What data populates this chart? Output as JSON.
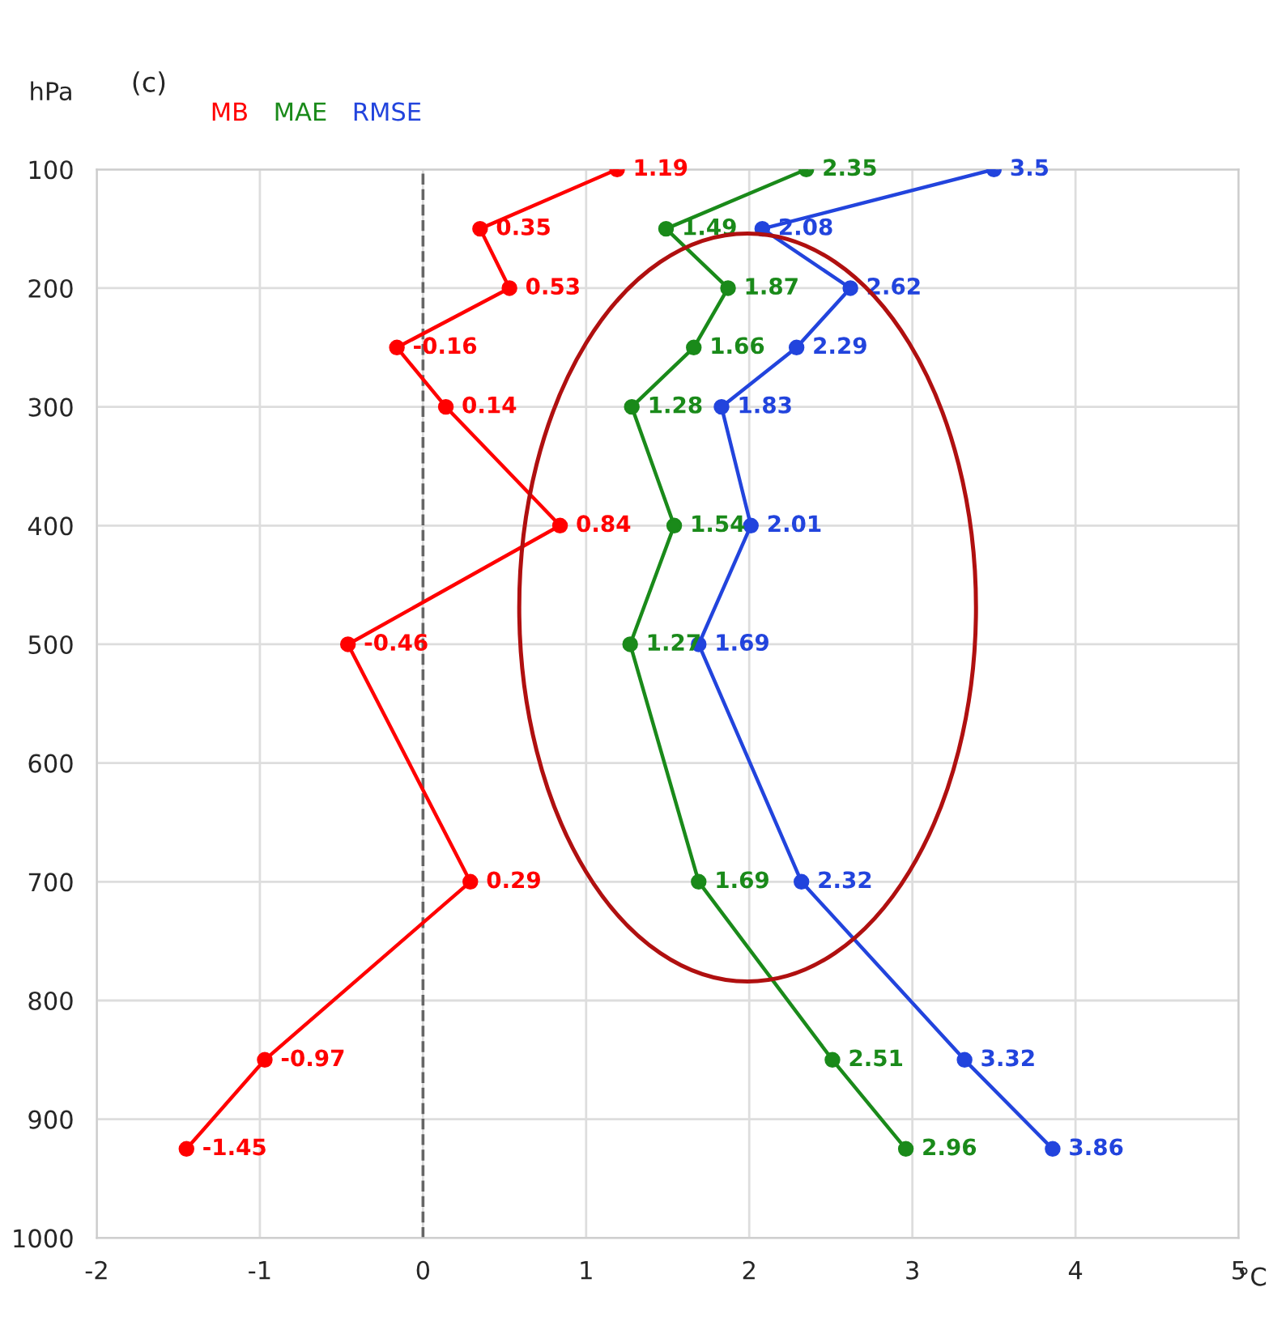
{
  "chart_data": {
    "type": "line",
    "title": "(c)",
    "ylabel": "hPa",
    "xlabel": "°C",
    "orientation": "horizontal",
    "x": [
      100,
      150,
      200,
      250,
      300,
      400,
      500,
      700,
      850,
      925
    ],
    "series": [
      {
        "name": "MB",
        "color": "#ff0000",
        "values": [
          1.19,
          0.35,
          0.53,
          -0.16,
          0.14,
          0.84,
          -0.46,
          0.29,
          -0.97,
          -1.45
        ]
      },
      {
        "name": "MAE",
        "color": "#1a8a1a",
        "values": [
          2.35,
          1.49,
          1.87,
          1.66,
          1.28,
          1.54,
          1.27,
          1.69,
          2.51,
          2.96
        ]
      },
      {
        "name": "RMSE",
        "color": "#2244dd",
        "values": [
          3.5,
          2.08,
          2.62,
          2.29,
          1.83,
          2.01,
          1.69,
          2.32,
          3.32,
          3.86
        ]
      }
    ],
    "xlim": [
      -2,
      5
    ],
    "xticks": [
      -2,
      -1,
      0,
      1,
      2,
      3,
      4,
      5
    ],
    "ylim": [
      1000,
      100
    ],
    "yticks": [
      100,
      200,
      300,
      400,
      500,
      600,
      700,
      800,
      900,
      1000
    ],
    "ref_lines": [
      {
        "axis": "x",
        "value": 0,
        "label": null,
        "color": "#666666",
        "line_style": "dashed"
      }
    ],
    "data_labels": true,
    "grid": true,
    "legend": "top left",
    "marker": "circle",
    "line_style": "solid"
  }
}
